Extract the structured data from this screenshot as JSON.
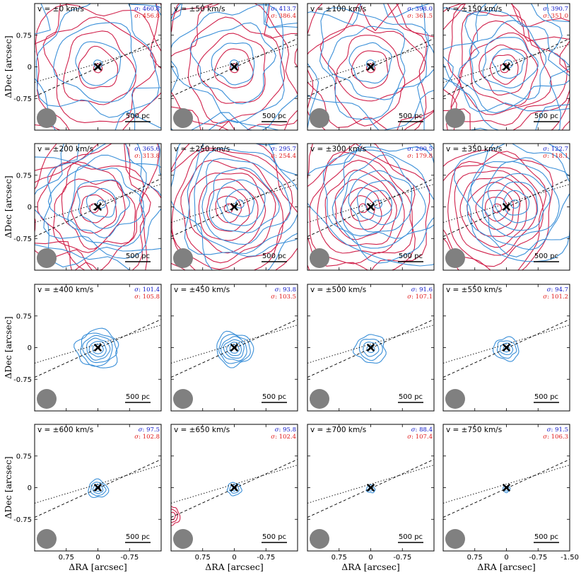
{
  "figure": {
    "ylabel": "ΔDec [arcsec]",
    "xlabel": "ΔRA [arcsec]",
    "scale_bar_label": "500 pc",
    "sigma_symbol": "σ",
    "colors": {
      "blue": "#3a8fd8",
      "red": "#d0204a",
      "sigma_blue": "#0a14c8",
      "sigma_red": "#e01a1a",
      "beam": "#808080"
    }
  },
  "chart_data": {
    "type": "contour-panel-grid",
    "rows": 4,
    "cols": 4,
    "xlim": [
      1.5,
      -1.5
    ],
    "ylim": [
      -1.5,
      1.5
    ],
    "ytick_labels": [
      "0.75",
      "0",
      "-0.75"
    ],
    "xtick_labels": [
      "0.75",
      "0",
      "-0.75"
    ],
    "xtick_labels_last": [
      "0.75",
      "0",
      "-0.75",
      "-1.50"
    ],
    "panels": [
      {
        "label": "v = ±0 km/s",
        "vel": 0,
        "sigma_blue": ": 460.8",
        "sigma_red": ": 456.8",
        "blue_contours": true,
        "red_contours": true
      },
      {
        "label": "v = ±50 km/s",
        "vel": 50,
        "sigma_blue": ": 413.7",
        "sigma_red": ": 386.4",
        "blue_contours": true,
        "red_contours": true
      },
      {
        "label": "v = ±100 km/s",
        "vel": 100,
        "sigma_blue": ": 398.0",
        "sigma_red": ": 361.5",
        "blue_contours": true,
        "red_contours": true
      },
      {
        "label": "v = ±150 km/s",
        "vel": 150,
        "sigma_blue": ": 390.7",
        "sigma_red": ": 351.0",
        "blue_contours": true,
        "red_contours": true
      },
      {
        "label": "v = ±200 km/s",
        "vel": 200,
        "sigma_blue": ": 365.6",
        "sigma_red": ": 313.8",
        "blue_contours": true,
        "red_contours": true
      },
      {
        "label": "v = ±250 km/s",
        "vel": 250,
        "sigma_blue": ": 295.7",
        "sigma_red": ": 254.4",
        "blue_contours": true,
        "red_contours": true
      },
      {
        "label": "v = ±300 km/s",
        "vel": 300,
        "sigma_blue": ": 200.5",
        "sigma_red": ": 179.8",
        "blue_contours": true,
        "red_contours": true
      },
      {
        "label": "v = ±350 km/s",
        "vel": 350,
        "sigma_blue": ": 122.7",
        "sigma_red": ": 118.1",
        "blue_contours": true,
        "red_contours": true
      },
      {
        "label": "v = ±400 km/s",
        "vel": 400,
        "sigma_blue": ": 101.4",
        "sigma_red": ": 105.8",
        "blue_contours": true,
        "red_contours": false
      },
      {
        "label": "v = ±450 km/s",
        "vel": 450,
        "sigma_blue": ": 93.8",
        "sigma_red": ": 103.5",
        "blue_contours": true,
        "red_contours": false
      },
      {
        "label": "v = ±500 km/s",
        "vel": 500,
        "sigma_blue": ": 91.6",
        "sigma_red": ": 107.1",
        "blue_contours": true,
        "red_contours": false
      },
      {
        "label": "v = ±550 km/s",
        "vel": 550,
        "sigma_blue": ": 94.7",
        "sigma_red": ": 101.2",
        "blue_contours": true,
        "red_contours": false
      },
      {
        "label": "v = ±600 km/s",
        "vel": 600,
        "sigma_blue": ": 97.5",
        "sigma_red": ": 102.8",
        "blue_contours": true,
        "red_contours": false
      },
      {
        "label": "v = ±650 km/s",
        "vel": 650,
        "sigma_blue": ": 95.8",
        "sigma_red": ": 102.4",
        "blue_contours": true,
        "red_contours": true
      },
      {
        "label": "v = ±700 km/s",
        "vel": 700,
        "sigma_blue": ": 88.4",
        "sigma_red": ": 107.4",
        "blue_contours": true,
        "red_contours": false
      },
      {
        "label": "v = ±750 km/s",
        "vel": 750,
        "sigma_blue": ": 91.5",
        "sigma_red": ": 106.3",
        "blue_contours": true,
        "red_contours": false
      }
    ]
  }
}
